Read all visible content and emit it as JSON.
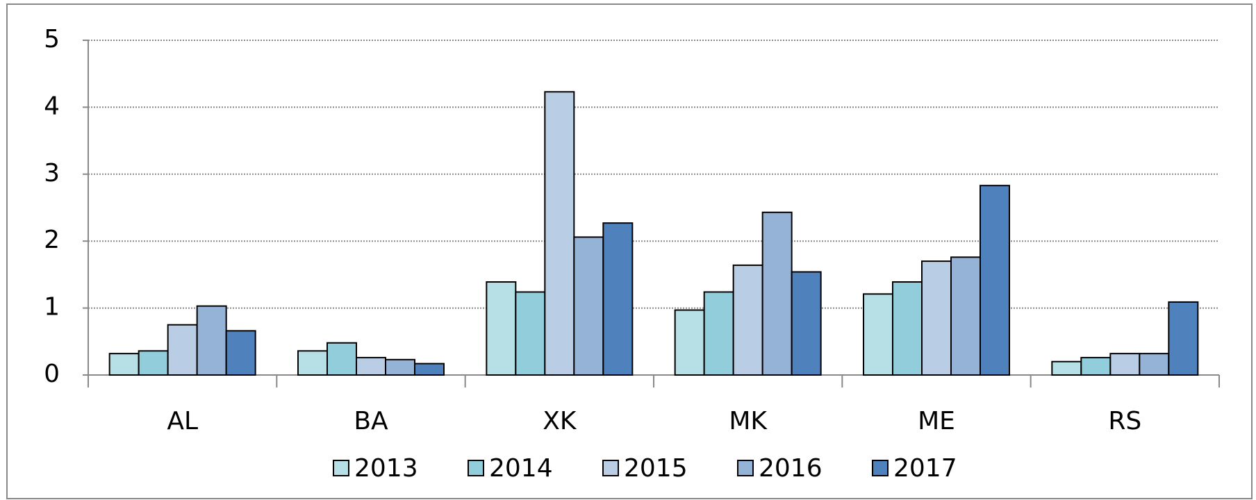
{
  "chart_data": {
    "type": "bar",
    "categories": [
      "AL",
      "BA",
      "XK",
      "MK",
      "ME",
      "RS"
    ],
    "series": [
      {
        "name": "2013",
        "color": "#b7dfe6",
        "values": [
          0.32,
          0.36,
          1.39,
          0.97,
          1.21,
          0.2
        ]
      },
      {
        "name": "2014",
        "color": "#92cddc",
        "values": [
          0.36,
          0.48,
          1.24,
          1.24,
          1.39,
          0.26
        ]
      },
      {
        "name": "2015",
        "color": "#b9cde5",
        "values": [
          0.75,
          0.26,
          4.23,
          1.64,
          1.7,
          0.32
        ]
      },
      {
        "name": "2016",
        "color": "#95b3d7",
        "values": [
          1.03,
          0.23,
          2.06,
          2.43,
          1.76,
          0.32
        ]
      },
      {
        "name": "2017",
        "color": "#4f81bd",
        "values": [
          0.66,
          0.17,
          2.27,
          1.54,
          2.83,
          1.09
        ]
      }
    ],
    "ylim": [
      0,
      5
    ],
    "yticks": [
      0,
      1,
      2,
      3,
      4,
      5
    ],
    "grid": true,
    "legend": "bottom"
  }
}
